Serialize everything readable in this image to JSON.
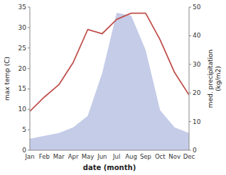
{
  "chart_data": {
    "type": "line",
    "x_label": "date (month)",
    "y_label": "max temp (C)",
    "y2_label": "med. precipitation\n(kg/m2)",
    "categories": [
      "Jan",
      "Feb",
      "Mar",
      "Apr",
      "May",
      "Jun",
      "Jul",
      "Aug",
      "Sep",
      "Oct",
      "Nov",
      "Dec"
    ],
    "series": [
      {
        "type": "area",
        "axis": "y2",
        "color": "#c5cce8",
        "values": [
          4.0,
          5.0,
          6.0,
          8.0,
          12.0,
          27.0,
          48.0,
          47.0,
          35.0,
          14.0,
          8.0,
          6.0
        ]
      },
      {
        "type": "line",
        "color": "#c0504d",
        "values": [
          9.5,
          13.0,
          16.0,
          21.5,
          29.5,
          28.5,
          32.0,
          33.5,
          33.5,
          27.0,
          19.0,
          13.5
        ]
      }
    ],
    "ylim": [
      0,
      35
    ],
    "yticks": [
      0,
      5,
      10,
      15,
      20,
      25,
      30,
      35
    ],
    "y2lim": [
      0,
      50
    ],
    "y2ticks": [
      0,
      10,
      20,
      30,
      40,
      50
    ],
    "grid": false
  }
}
